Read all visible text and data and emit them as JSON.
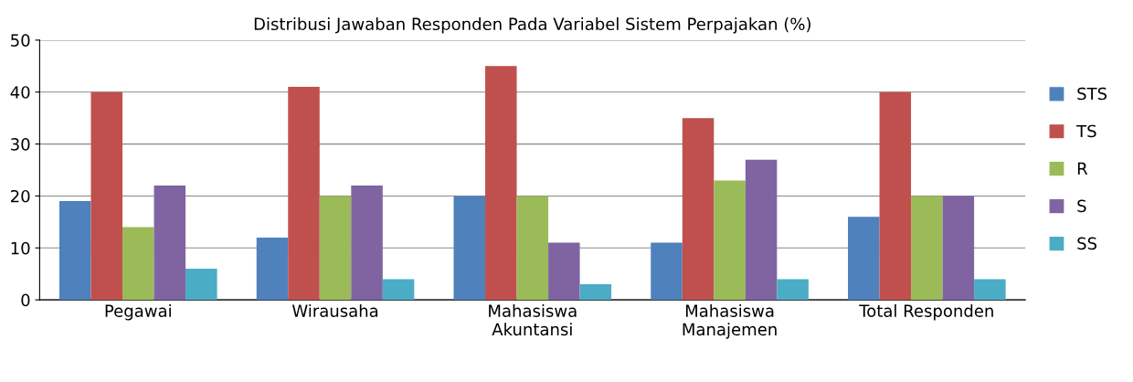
{
  "chart_data": {
    "type": "bar",
    "title": "Distribusi Jawaban Responden Pada Variabel Sistem Perpajakan (%)",
    "categories": [
      "Pegawai",
      "Wirausaha",
      "Mahasiswa\nAkuntansi",
      "Mahasiswa\nManajemen",
      "Total Responden"
    ],
    "series": [
      {
        "name": "STS",
        "color": "#4f81bd",
        "values": [
          19,
          12,
          20,
          11,
          16
        ]
      },
      {
        "name": "TS",
        "color": "#c0504d",
        "values": [
          40,
          41,
          45,
          35,
          40
        ]
      },
      {
        "name": "R",
        "color": "#9bbb59",
        "values": [
          14,
          20,
          20,
          23,
          20
        ]
      },
      {
        "name": "S",
        "color": "#8064a2",
        "values": [
          22,
          22,
          11,
          27,
          20
        ]
      },
      {
        "name": "SS",
        "color": "#4bacc6",
        "values": [
          6,
          4,
          3,
          4,
          4
        ]
      }
    ],
    "ylim": [
      0,
      50
    ],
    "yticks": [
      0,
      10,
      20,
      30,
      40,
      50
    ],
    "grid": "y",
    "legend": "right"
  }
}
